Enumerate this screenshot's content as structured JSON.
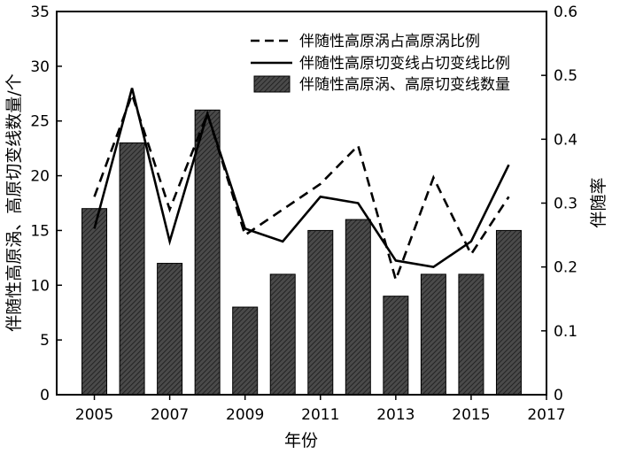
{
  "chart_data": {
    "type": "bar",
    "x": [
      2005,
      2006,
      2007,
      2008,
      2009,
      2010,
      2011,
      2012,
      2013,
      2014,
      2015,
      2016
    ],
    "series": [
      {
        "name": "伴随性高原涡、高原切变线数量",
        "kind": "bar",
        "axis": "left",
        "values": [
          17,
          23,
          12,
          26,
          8,
          11,
          15,
          16,
          9,
          11,
          11,
          15
        ]
      },
      {
        "name": "伴随性高原涡占高原涡比例",
        "kind": "line",
        "style": "dashed",
        "axis": "right",
        "values": [
          0.31,
          0.47,
          0.29,
          0.44,
          0.25,
          0.29,
          0.33,
          0.39,
          0.18,
          0.34,
          0.22,
          0.31
        ]
      },
      {
        "name": "伴随性高原切变线占切变线比例",
        "kind": "line",
        "style": "solid",
        "axis": "right",
        "values": [
          0.26,
          0.48,
          0.24,
          0.44,
          0.26,
          0.24,
          0.31,
          0.3,
          0.21,
          0.2,
          0.24,
          0.36
        ]
      }
    ],
    "xlabel": "年份",
    "ylabel": "伴随性高原涡、高原切变线数量/个",
    "y2label": "伴随率",
    "xlim": [
      2004,
      2017
    ],
    "ylim": [
      0,
      35
    ],
    "y2lim": [
      0,
      0.6
    ],
    "xticks": [
      "2005",
      "2007",
      "2009",
      "2011",
      "2013",
      "2015",
      "2017"
    ],
    "yticks": [
      "0",
      "5",
      "10",
      "15",
      "20",
      "25",
      "30",
      "35"
    ],
    "y2ticks": [
      "0",
      "0.1",
      "0.2",
      "0.3",
      "0.4",
      "0.5",
      "0.6"
    ],
    "legend": {
      "placement": "top-right",
      "entries": [
        "伴随性高原涡占高原涡比例",
        "伴随性高原切变线占切变线比例",
        "伴随性高原涡、高原切变线数量"
      ]
    },
    "grid": false,
    "colors": {
      "bar_fill": "#3a3a3a",
      "line": "#000000"
    }
  }
}
